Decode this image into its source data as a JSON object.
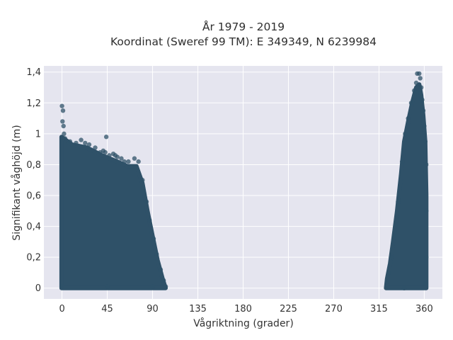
{
  "chart_data": {
    "type": "scatter",
    "title": "År 1979 - 2019",
    "subtitle": "Koordinat (Sweref 99 TM): E 349349, N 6239984",
    "xlabel": "Vågriktning (grader)",
    "ylabel": "Signifikant våghöjd (m)",
    "xlim": [
      -18,
      378
    ],
    "ylim": [
      -0.07,
      1.44
    ],
    "x_ticks": [
      0,
      45,
      90,
      135,
      180,
      225,
      270,
      315,
      360
    ],
    "x_tick_labels": [
      "0",
      "45",
      "90",
      "135",
      "180",
      "225",
      "270",
      "315",
      "360"
    ],
    "y_ticks": [
      0,
      0.2,
      0.4,
      0.6,
      0.8,
      1.0,
      1.2,
      1.4
    ],
    "y_tick_labels": [
      "0",
      "0,2",
      "0,4",
      "0,6",
      "0,8",
      "1",
      "1,2",
      "1,4"
    ],
    "grid": true,
    "marker_color": "#2f5168",
    "background_color": "#e5e5ef",
    "series": [
      {
        "name": "",
        "points": [
          [
            0,
            1.18
          ],
          [
            1,
            1.15
          ],
          [
            0.5,
            1.08
          ],
          [
            1.5,
            1.05
          ],
          [
            2,
            1.0
          ],
          [
            3,
            0.97
          ],
          [
            8,
            0.95
          ],
          [
            14,
            0.94
          ],
          [
            19,
            0.96
          ],
          [
            23,
            0.94
          ],
          [
            27,
            0.93
          ],
          [
            33,
            0.91
          ],
          [
            38,
            0.88
          ],
          [
            41,
            0.89
          ],
          [
            43,
            0.88
          ],
          [
            44,
            0.98
          ],
          [
            47,
            0.86
          ],
          [
            51,
            0.87
          ],
          [
            53,
            0.86
          ],
          [
            55,
            0.85
          ],
          [
            59,
            0.84
          ],
          [
            62,
            0.82
          ],
          [
            66,
            0.82
          ],
          [
            72,
            0.84
          ],
          [
            76,
            0.82
          ],
          [
            80,
            0.7
          ],
          [
            84,
            0.56
          ],
          [
            87,
            0.44
          ],
          [
            91,
            0.32
          ],
          [
            94,
            0.22
          ],
          [
            98,
            0.12
          ],
          [
            101,
            0.05
          ],
          [
            103,
            0.01
          ],
          [
            0,
            0.01
          ],
          [
            45,
            0.01
          ],
          [
            90,
            0.01
          ],
          [
            323,
            0.04
          ],
          [
            325,
            0.1
          ],
          [
            327,
            0.2
          ],
          [
            330,
            0.34
          ],
          [
            334,
            0.56
          ],
          [
            338,
            0.82
          ],
          [
            341,
            1.0
          ],
          [
            344,
            1.1
          ],
          [
            347,
            1.2
          ],
          [
            350,
            1.28
          ],
          [
            352,
            1.33
          ],
          [
            353,
            1.39
          ],
          [
            355,
            1.39
          ],
          [
            356,
            1.36
          ],
          [
            357,
            1.3
          ],
          [
            358,
            1.22
          ],
          [
            359,
            1.15
          ],
          [
            360,
            1.05
          ],
          [
            361,
            0.95
          ],
          [
            362,
            0.8
          ],
          [
            362,
            0.5
          ],
          [
            362,
            0.2
          ],
          [
            361,
            0.03
          ],
          [
            340,
            0.0
          ]
        ]
      }
    ]
  }
}
